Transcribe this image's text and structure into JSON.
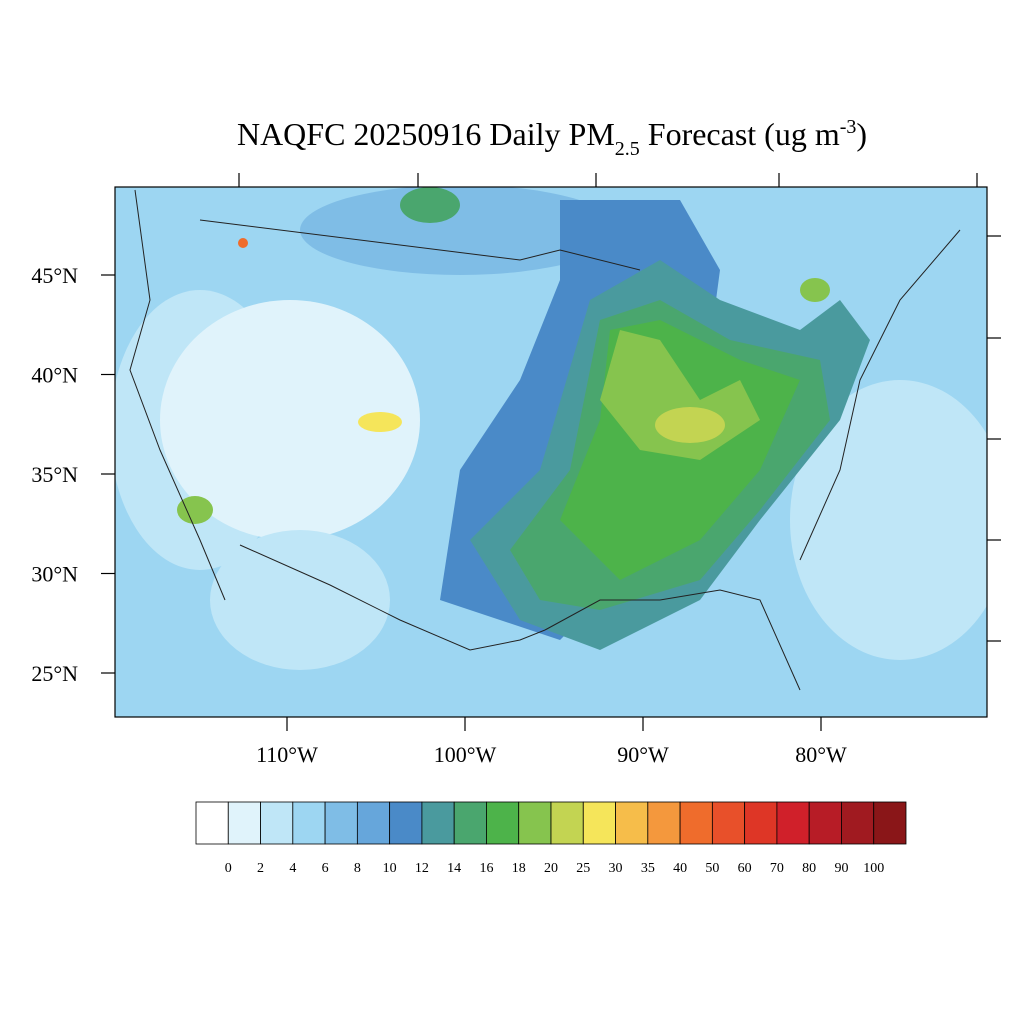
{
  "title": {
    "main": "NAQFC 20250916 Daily PM",
    "sub": "2.5",
    "mid": " Forecast (ug m",
    "sup": "-3",
    "end": ")"
  },
  "lat_ticks": [
    {
      "value": 45,
      "label": "45°N"
    },
    {
      "value": 40,
      "label": "40°N"
    },
    {
      "value": 35,
      "label": "35°N"
    },
    {
      "value": 30,
      "label": "30°N"
    },
    {
      "value": 25,
      "label": "25°N"
    }
  ],
  "lon_ticks": [
    {
      "value": -110,
      "label": "110°W"
    },
    {
      "value": -100,
      "label": "100°W"
    },
    {
      "value": -90,
      "label": "90°W"
    },
    {
      "value": -80,
      "label": "80°W"
    }
  ],
  "colorbar": {
    "levels": [
      0,
      2,
      4,
      6,
      8,
      10,
      12,
      14,
      16,
      18,
      20,
      25,
      30,
      35,
      40,
      50,
      60,
      70,
      80,
      90,
      100
    ],
    "colors": [
      "#ffffff",
      "#e0f3fb",
      "#bfe6f7",
      "#9dd6f2",
      "#7fbde6",
      "#66a6db",
      "#4a8ac8",
      "#4a9a9e",
      "#4aa66e",
      "#4db34a",
      "#86c44e",
      "#c3d452",
      "#f5e55a",
      "#f6bd4a",
      "#f4983d",
      "#ef6c2c",
      "#e8502a",
      "#de3626",
      "#d0202a",
      "#b71c26",
      "#a01a20",
      "#8a1618"
    ]
  }
}
